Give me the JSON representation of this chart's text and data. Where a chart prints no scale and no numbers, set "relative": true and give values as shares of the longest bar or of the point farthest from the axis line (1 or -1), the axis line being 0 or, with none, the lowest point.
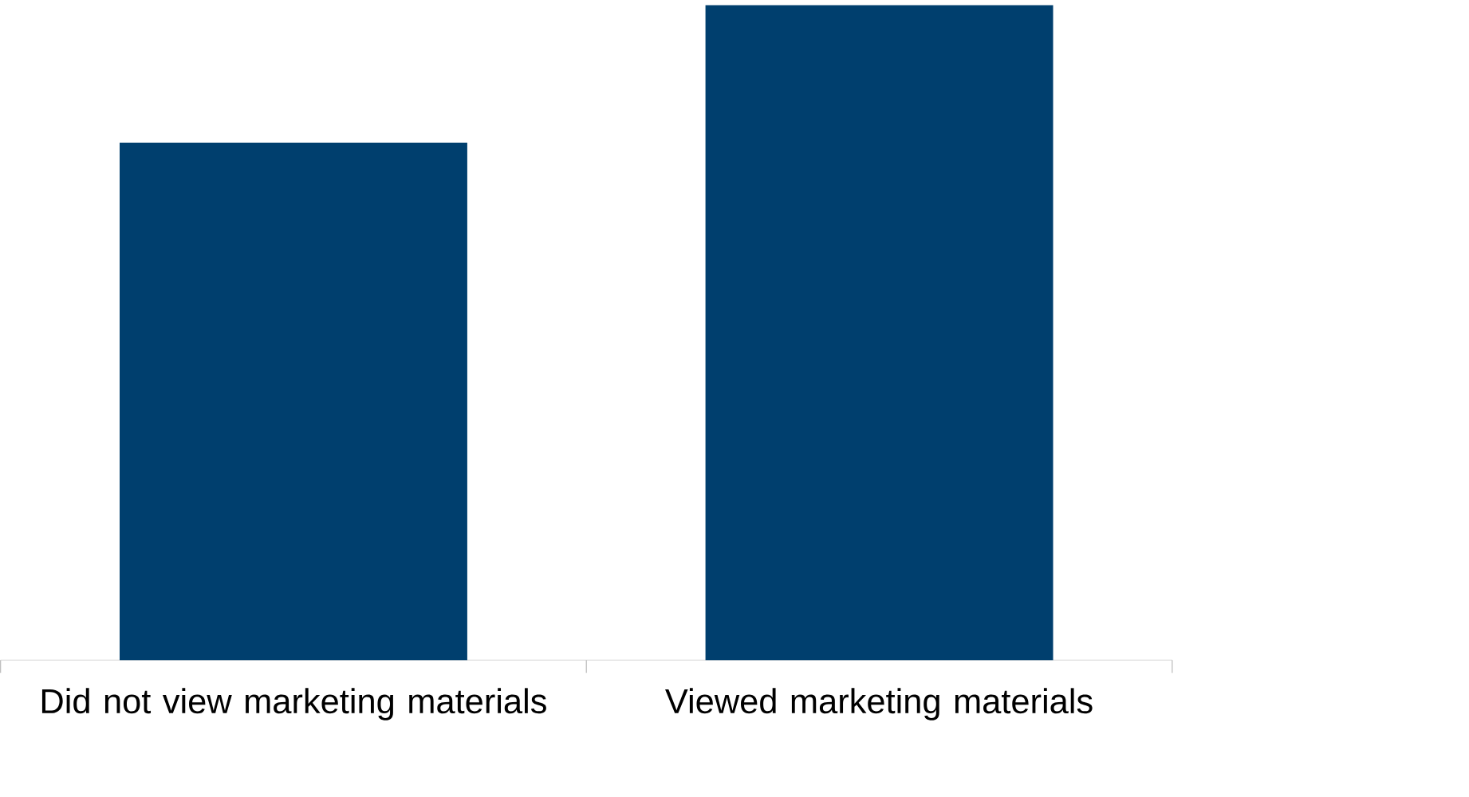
{
  "chart_data": {
    "type": "bar",
    "relative": true,
    "categories": [
      "Did not view marketing materials",
      "Viewed marketing materials"
    ],
    "values": [
      0.79,
      1
    ],
    "color": "#003f6e"
  }
}
